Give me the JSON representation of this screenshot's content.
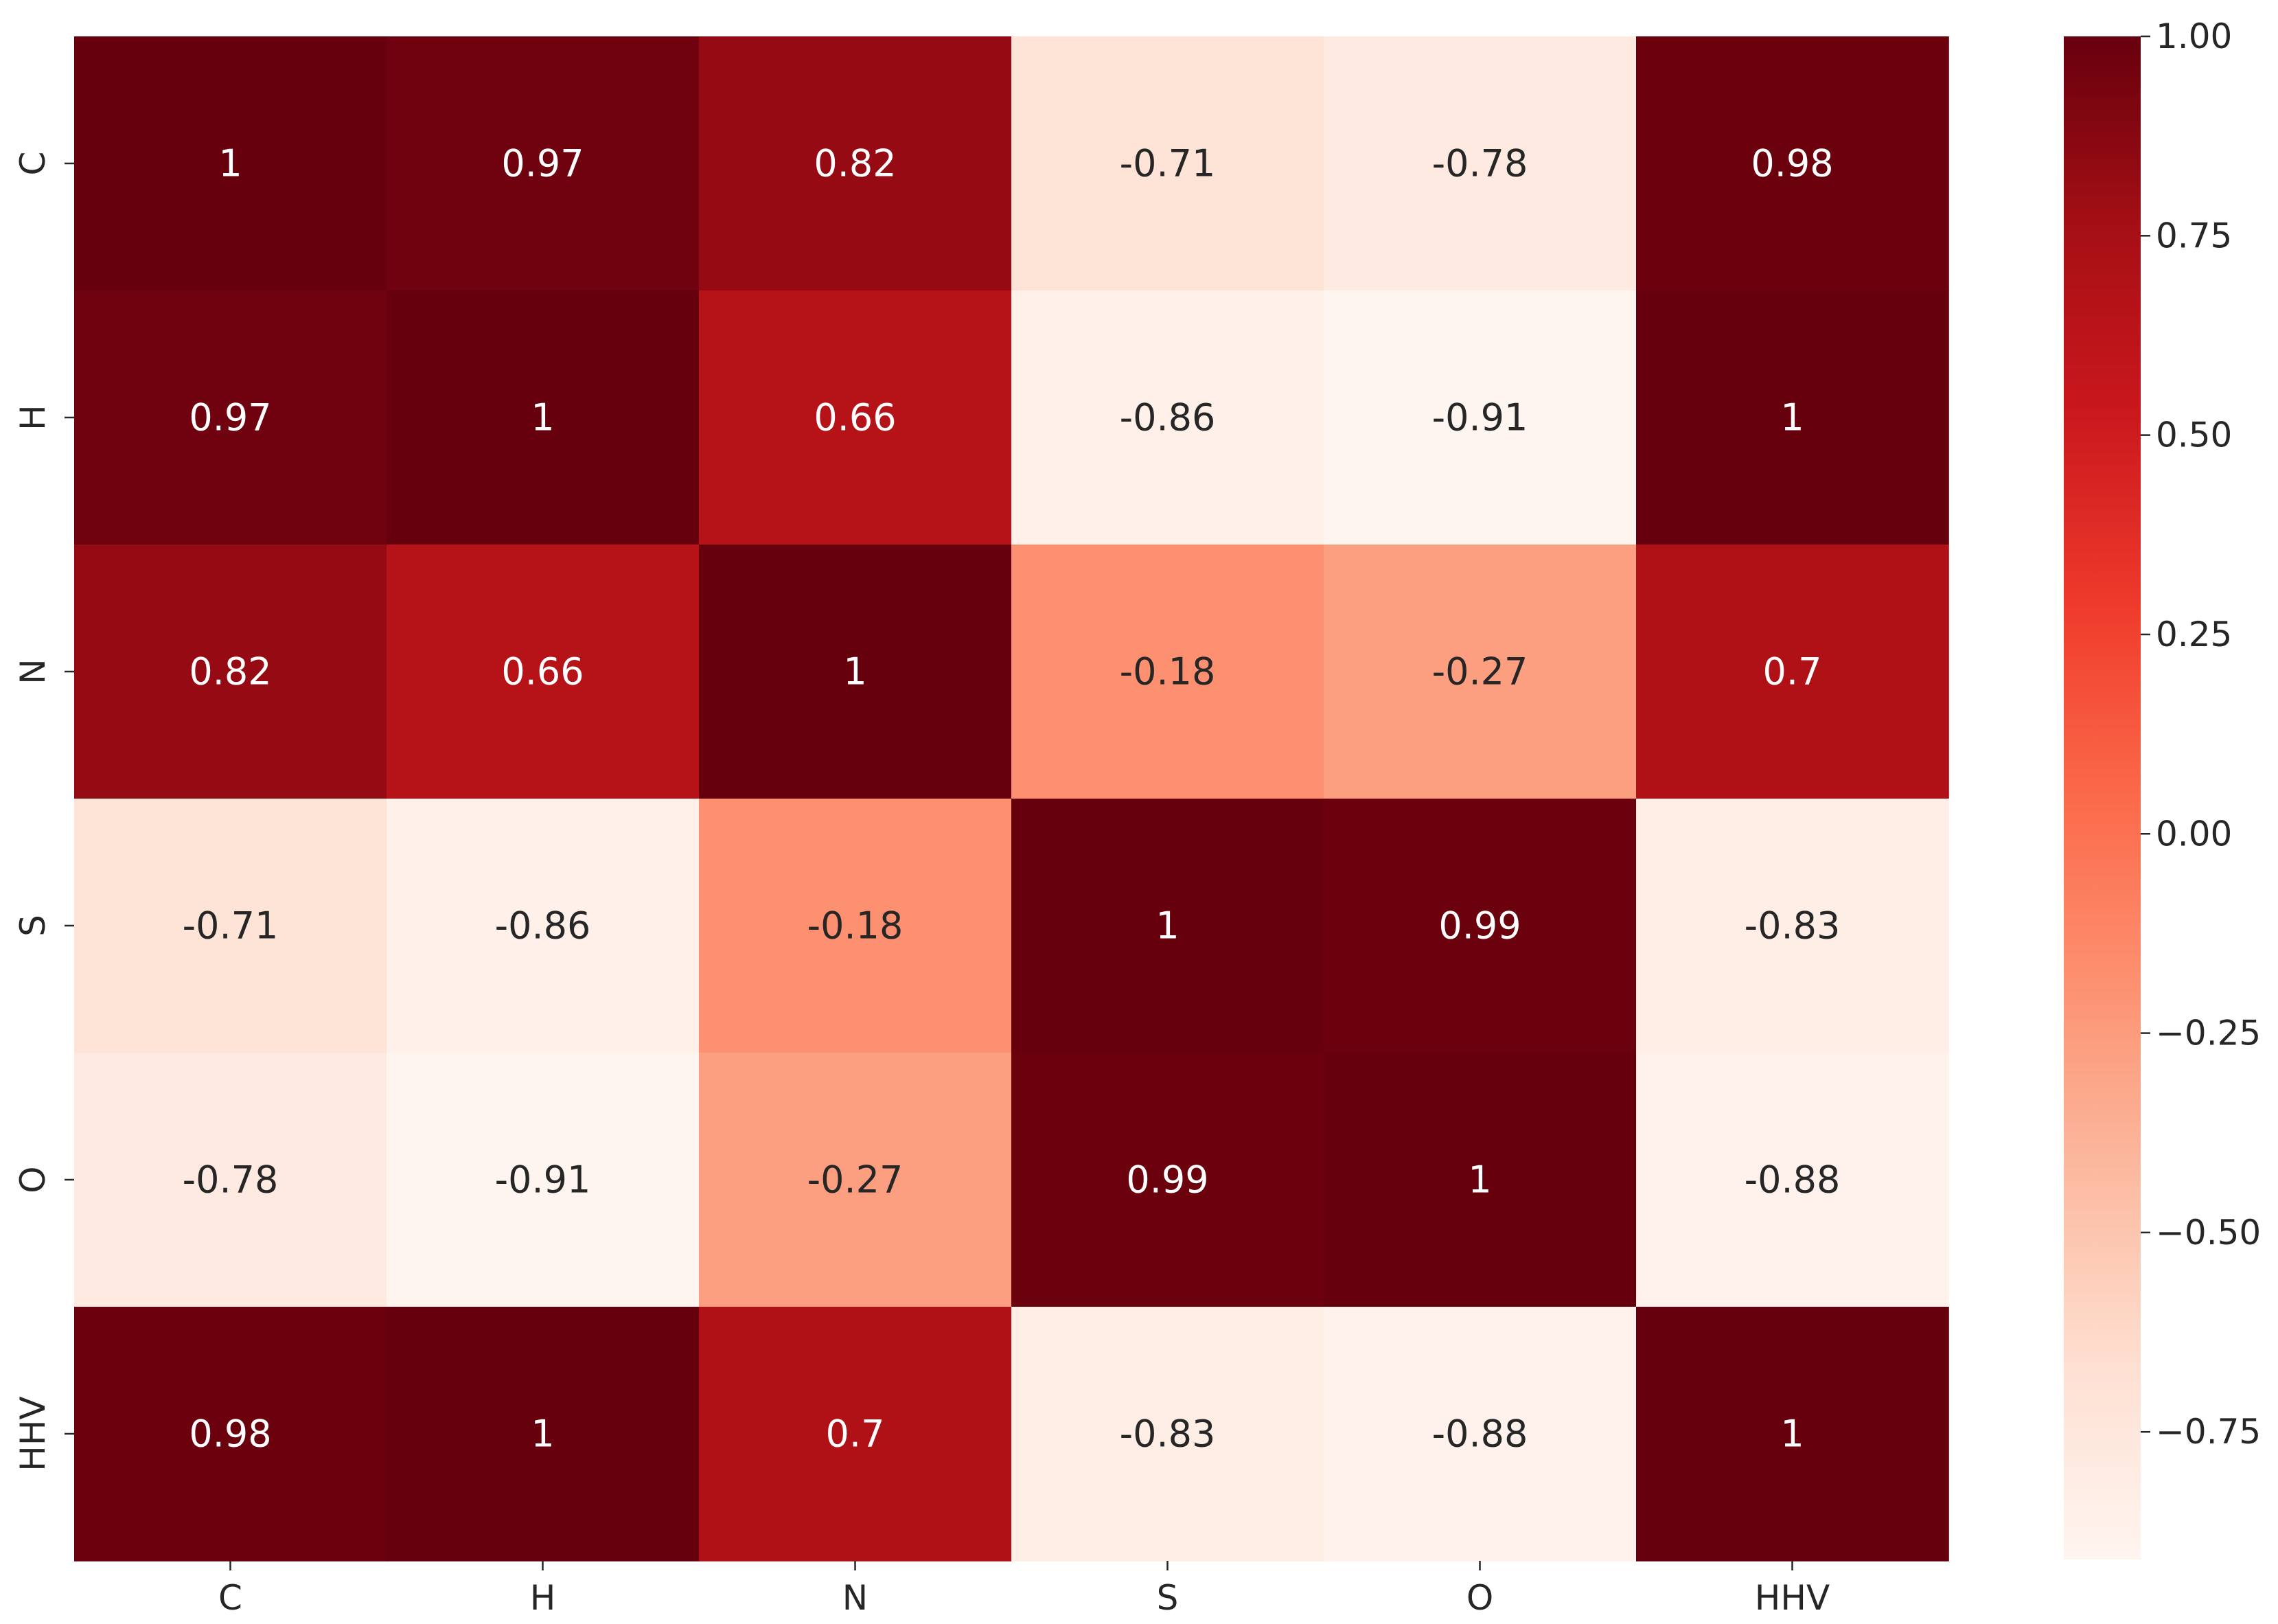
{
  "chart_data": {
    "type": "heatmap",
    "x_labels": [
      "C",
      "H",
      "N",
      "S",
      "O",
      "HHV"
    ],
    "y_labels": [
      "C",
      "H",
      "N",
      "S",
      "O",
      "HHV"
    ],
    "values": [
      [
        1,
        0.97,
        0.82,
        -0.71,
        -0.78,
        0.98
      ],
      [
        0.97,
        1,
        0.66,
        -0.86,
        -0.91,
        1
      ],
      [
        0.82,
        0.66,
        1,
        -0.18,
        -0.27,
        0.7
      ],
      [
        -0.71,
        -0.86,
        -0.18,
        1,
        0.99,
        -0.83
      ],
      [
        -0.78,
        -0.91,
        -0.27,
        0.99,
        1,
        -0.88
      ],
      [
        0.98,
        1,
        0.7,
        -0.83,
        -0.88,
        1
      ]
    ],
    "cell_labels": [
      [
        "1",
        "0.97",
        "0.82",
        "-0.71",
        "-0.78",
        "0.98"
      ],
      [
        "0.97",
        "1",
        "0.66",
        "-0.86",
        "-0.91",
        "1"
      ],
      [
        "0.82",
        "0.66",
        "1",
        "-0.18",
        "-0.27",
        "0.7"
      ],
      [
        "-0.71",
        "-0.86",
        "-0.18",
        "1",
        "0.99",
        "-0.83"
      ],
      [
        "-0.78",
        "-0.91",
        "-0.27",
        "0.99",
        "1",
        "-0.88"
      ],
      [
        "0.98",
        "1",
        "0.7",
        "-0.83",
        "-0.88",
        "1"
      ]
    ],
    "colormap": "Reds",
    "colormap_stops": [
      "#fff5f0",
      "#fee0d2",
      "#fcbba1",
      "#fc9272",
      "#fb6a4a",
      "#ef3b2c",
      "#cb181d",
      "#a50f15",
      "#67000d"
    ],
    "annotation_colors": {
      "dark": "#262626",
      "light": "#ffffff"
    },
    "vmin": -0.91,
    "vmax": 1.0,
    "colorbar": {
      "ticks": [
        1.0,
        0.75,
        0.5,
        0.25,
        0.0,
        -0.25,
        -0.5,
        -0.75
      ],
      "tick_labels": [
        "1.00",
        "0.75",
        "0.50",
        "0.25",
        "0.00",
        "−0.25",
        "−0.50",
        "−0.75"
      ]
    },
    "title": "",
    "xlabel": "",
    "ylabel": ""
  }
}
